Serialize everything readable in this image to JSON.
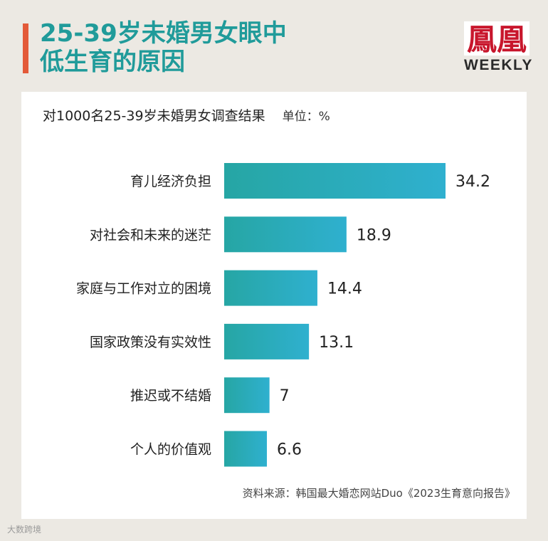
{
  "header": {
    "title_line1": "25-39岁未婚男女眼中",
    "title_line2": "低生育的原因",
    "accent_color": "#e35a39",
    "title_color": "#209b9a"
  },
  "logo": {
    "mark": "鳳凰",
    "text": "WEEKLY",
    "color": "#c8162c"
  },
  "chart_data": {
    "type": "bar",
    "orientation": "horizontal",
    "subtitle": "对1000名25-39岁未婚男女调查结果",
    "unit": "单位：%",
    "categories": [
      "育儿经济负担",
      "对社会和未来的迷茫",
      "家庭与工作对立的困境",
      "国家政策没有实效性",
      "推迟或不结婚",
      "个人的价值观"
    ],
    "values": [
      34.2,
      18.9,
      14.4,
      13.1,
      7,
      6.6
    ],
    "value_labels": [
      "34.2",
      "18.9",
      "14.4",
      "13.1",
      "7",
      "6.6"
    ],
    "bar_color_start": "#26a6a4",
    "bar_color_end": "#2fb0cf",
    "grid": false,
    "legend": "none"
  },
  "source": "资料来源：韩国最大婚恋网站Duo《2023生育意向报告》",
  "watermark": "大数跨境"
}
